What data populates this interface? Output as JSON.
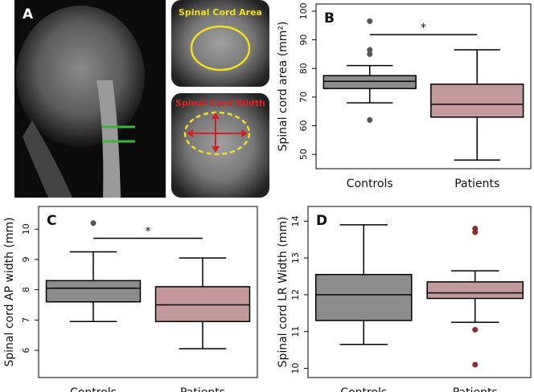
{
  "image_panel": {
    "label": "A",
    "insets": [
      "Spinal Cord Area",
      "Spinal Cord Width"
    ]
  },
  "chart_data": [
    {
      "type": "box",
      "panel": "B",
      "y_label": "Spinal cord area (mm²)",
      "categories": [
        "Controls",
        "Patients"
      ],
      "ylim": [
        45,
        102.5
      ],
      "yticks": [
        50,
        60,
        70,
        80,
        90,
        100
      ],
      "boxes": [
        {
          "color": "#8c8c8c",
          "outlier_color": "#555555",
          "whisker_low": 68,
          "q1": 73,
          "median": 75.5,
          "q3": 77.5,
          "whisker_high": 81,
          "outliers": [
            96.5,
            86.5,
            85,
            62
          ]
        },
        {
          "color": "#c4999c",
          "outlier_color": "#8b2a2a",
          "whisker_low": 48,
          "q1": 63,
          "median": 67.5,
          "q3": 74.5,
          "whisker_high": 86.5,
          "outliers": []
        }
      ],
      "annotation": {
        "text": "*",
        "y": 91.8
      }
    },
    {
      "type": "box",
      "panel": "C",
      "y_label": "Spinal cord AP width (mm)",
      "categories": [
        "Controls",
        "Patients"
      ],
      "ylim": [
        5.1,
        10.75
      ],
      "yticks": [
        6,
        7,
        8,
        9,
        10
      ],
      "boxes": [
        {
          "color": "#8c8c8c",
          "outlier_color": "#555555",
          "whisker_low": 6.95,
          "q1": 7.6,
          "median": 8.05,
          "q3": 8.3,
          "whisker_high": 9.25,
          "outliers": [
            10.2
          ]
        },
        {
          "color": "#c4999c",
          "outlier_color": "#8b2a2a",
          "whisker_low": 6.05,
          "q1": 6.95,
          "median": 7.5,
          "q3": 8.1,
          "whisker_high": 9.05,
          "outliers": []
        }
      ],
      "annotation": {
        "text": "*",
        "y": 9.7
      }
    },
    {
      "type": "box",
      "panel": "D",
      "y_label": "Spinal cord LR Width (mm)",
      "categories": [
        "Controls",
        "Patients"
      ],
      "ylim": [
        9.75,
        14.4
      ],
      "yticks": [
        10,
        11,
        12,
        13,
        14
      ],
      "boxes": [
        {
          "color": "#8c8c8c",
          "outlier_color": "#555555",
          "whisker_low": 10.65,
          "q1": 11.3,
          "median": 12.0,
          "q3": 12.55,
          "whisker_high": 13.9,
          "outliers": []
        },
        {
          "color": "#c4999c",
          "outlier_color": "#8b2a2a",
          "whisker_low": 11.25,
          "q1": 11.9,
          "median": 12.05,
          "q3": 12.35,
          "whisker_high": 12.65,
          "outliers": [
            13.8,
            13.7,
            11.05,
            10.1
          ]
        }
      ]
    }
  ]
}
